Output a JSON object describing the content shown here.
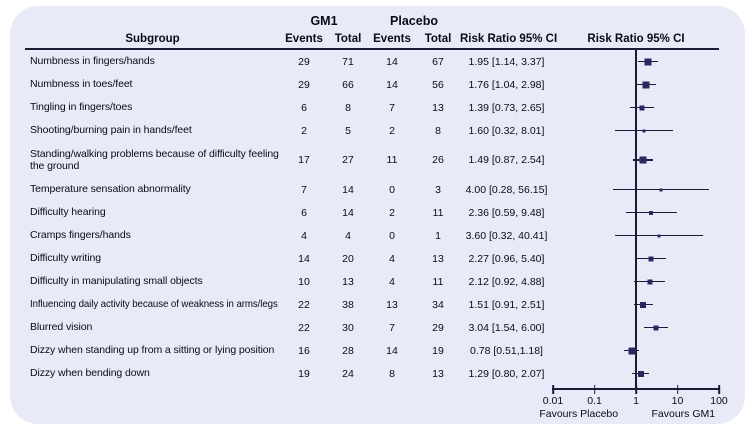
{
  "table_header": {
    "group1": "GM1",
    "group2": "Placebo",
    "subgroup": "Subgroup",
    "events": "Events",
    "total": "Total",
    "risk_ratio_text_col": "Risk Ratio 95% CI",
    "risk_ratio_plot_col": "Risk Ratio 95% CI"
  },
  "chart_data": {
    "type": "forest",
    "x_scale": "log10",
    "xlim": [
      0.01,
      100
    ],
    "x_ticks": [
      0.01,
      0.1,
      1,
      10,
      100
    ],
    "x_tick_labels": [
      "0.01",
      "0.1",
      "1",
      "10",
      "100"
    ],
    "reference_line": 1,
    "favours_left": "Favours Placebo",
    "favours_right": "Favours GM1",
    "rows": [
      {
        "subgroup": "Numbness in fingers/hands",
        "gm1_events": 29,
        "gm1_total": 71,
        "placebo_events": 14,
        "placebo_total": 67,
        "rr": 1.95,
        "ci_low": 1.14,
        "ci_high": 3.37,
        "rr_label": "1.95 [1.14, 3.37]",
        "marker_size": 7,
        "two_line": false
      },
      {
        "subgroup": "Numbness in toes/feet",
        "gm1_events": 29,
        "gm1_total": 66,
        "placebo_events": 14,
        "placebo_total": 56,
        "rr": 1.76,
        "ci_low": 1.04,
        "ci_high": 2.98,
        "rr_label": "1.76 [1.04, 2.98]",
        "marker_size": 7,
        "two_line": false
      },
      {
        "subgroup": "Tingling in fingers/toes",
        "gm1_events": 6,
        "gm1_total": 8,
        "placebo_events": 7,
        "placebo_total": 13,
        "rr": 1.39,
        "ci_low": 0.73,
        "ci_high": 2.65,
        "rr_label": "1.39 [0.73, 2.65]",
        "marker_size": 5,
        "two_line": false
      },
      {
        "subgroup": "Shooting/burning pain in hands/feet",
        "gm1_events": 2,
        "gm1_total": 5,
        "placebo_events": 2,
        "placebo_total": 8,
        "rr": 1.6,
        "ci_low": 0.32,
        "ci_high": 8.01,
        "rr_label": "1.60 [0.32, 8.01]",
        "marker_size": 3,
        "two_line": false
      },
      {
        "subgroup": "Standing/walking problems because of difficulty feeling the ground",
        "gm1_events": 17,
        "gm1_total": 27,
        "placebo_events": 11,
        "placebo_total": 26,
        "rr": 1.49,
        "ci_low": 0.87,
        "ci_high": 2.54,
        "rr_label": "1.49 [0.87, 2.54]",
        "marker_size": 7,
        "two_line": true
      },
      {
        "subgroup": "Temperature sensation abnormality",
        "gm1_events": 7,
        "gm1_total": 14,
        "placebo_events": 0,
        "placebo_total": 3,
        "rr": 4.0,
        "ci_low": 0.28,
        "ci_high": 56.15,
        "rr_label": "4.00 [0.28, 56.15]",
        "marker_size": 3,
        "two_line": false
      },
      {
        "subgroup": "Difficulty hearing",
        "gm1_events": 6,
        "gm1_total": 14,
        "placebo_events": 2,
        "placebo_total": 11,
        "rr": 2.36,
        "ci_low": 0.59,
        "ci_high": 9.48,
        "rr_label": "2.36 [0.59, 9.48]",
        "marker_size": 4,
        "two_line": false
      },
      {
        "subgroup": "Cramps fingers/hands",
        "gm1_events": 4,
        "gm1_total": 4,
        "placebo_events": 0,
        "placebo_total": 1,
        "rr": 3.6,
        "ci_low": 0.32,
        "ci_high": 40.41,
        "rr_label": "3.60 [0.32, 40.41]",
        "marker_size": 3,
        "two_line": false
      },
      {
        "subgroup": "Difficulty writing",
        "gm1_events": 14,
        "gm1_total": 20,
        "placebo_events": 4,
        "placebo_total": 13,
        "rr": 2.27,
        "ci_low": 0.96,
        "ci_high": 5.4,
        "rr_label": "2.27 [0.96, 5.40]",
        "marker_size": 5,
        "two_line": false
      },
      {
        "subgroup": "Difficulty in manipulating small objects",
        "gm1_events": 10,
        "gm1_total": 13,
        "placebo_events": 4,
        "placebo_total": 11,
        "rr": 2.12,
        "ci_low": 0.92,
        "ci_high": 4.88,
        "rr_label": "2.12 [0.92, 4.88]",
        "marker_size": 5,
        "two_line": false
      },
      {
        "subgroup": "Influencing daily activity because of weakness in arms/legs",
        "gm1_events": 22,
        "gm1_total": 38,
        "placebo_events": 13,
        "placebo_total": 34,
        "rr": 1.51,
        "ci_low": 0.91,
        "ci_high": 2.51,
        "rr_label": "1.51 [0.91, 2.51]",
        "marker_size": 6,
        "two_line": false
      },
      {
        "subgroup": "Blurred vision",
        "gm1_events": 22,
        "gm1_total": 30,
        "placebo_events": 7,
        "placebo_total": 29,
        "rr": 3.04,
        "ci_low": 1.54,
        "ci_high": 6.0,
        "rr_label": "3.04 [1.54, 6.00]",
        "marker_size": 5,
        "two_line": false
      },
      {
        "subgroup": "Dizzy when standing up from a sitting or lying position",
        "gm1_events": 16,
        "gm1_total": 28,
        "placebo_events": 14,
        "placebo_total": 19,
        "rr": 0.78,
        "ci_low": 0.51,
        "ci_high": 1.18,
        "rr_label": "0.78 [0.51,1.18]",
        "marker_size": 7,
        "two_line": false
      },
      {
        "subgroup": "Dizzy when bending down",
        "gm1_events": 19,
        "gm1_total": 24,
        "placebo_events": 8,
        "placebo_total": 13,
        "rr": 1.29,
        "ci_low": 0.8,
        "ci_high": 2.07,
        "rr_label": "1.29 [0.80, 2.07]",
        "marker_size": 6,
        "two_line": false
      }
    ]
  },
  "colors": {
    "card_background": "#e9eaf8",
    "marker": "#28285f",
    "line": "#1b1b38",
    "text": "#0b0b16"
  }
}
